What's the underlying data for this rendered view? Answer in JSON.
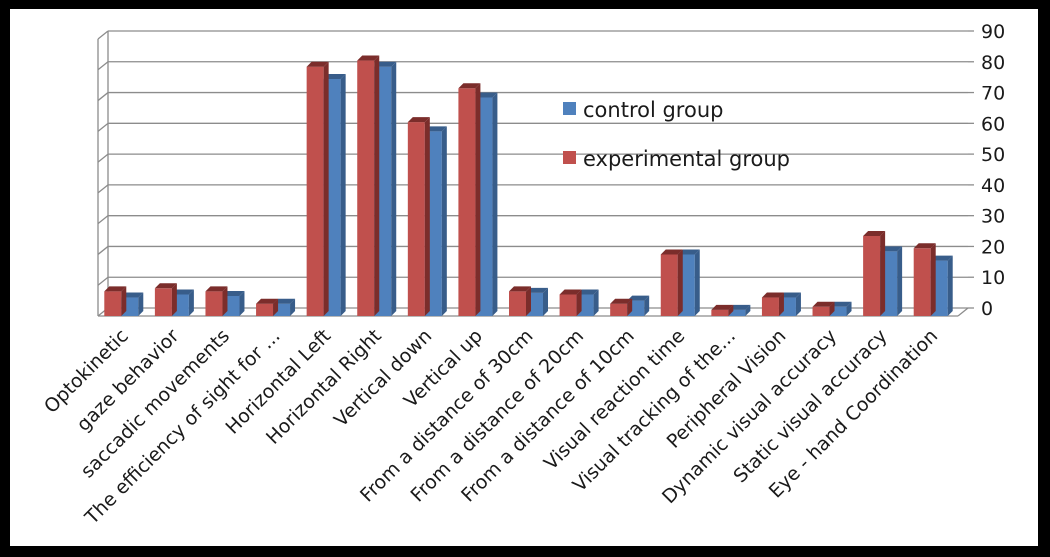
{
  "colors": {
    "background": "#ffffff",
    "border": "#000000",
    "gridline": "#8c8c8c",
    "control_front": "#4f81bd",
    "control_side": "#385d8a",
    "experimental_front": "#c0504d",
    "experimental_side": "#7b2d2b"
  },
  "chart_data": {
    "type": "bar",
    "style": "3d-clustered-column",
    "grid": true,
    "legend_position": "inside-top-right",
    "ylim": [
      0,
      90
    ],
    "yticks": [
      0,
      10,
      20,
      30,
      40,
      50,
      60,
      70,
      80,
      90
    ],
    "categories": [
      "Optokinetic",
      "gaze behavior",
      "saccadic movements",
      "The efficiency of sight for ...",
      "Horizontal Left",
      "Horizontal Right",
      "Vertical down",
      "Vertical up",
      "From a distance of 30cm",
      "From a distance of 20cm",
      "From a distance of 10cm",
      "Visual reaction time",
      "Visual tracking of the...",
      "Peripheral Vision",
      "Dynamic visual accuracy",
      "Static visual accuracy",
      "Eye - hand Coordination"
    ],
    "series": [
      {
        "name": "experimental group",
        "color": "#c0504d",
        "values": [
          8,
          9,
          8,
          4,
          81,
          83,
          63,
          74,
          8,
          7,
          4,
          20,
          2,
          6,
          3,
          26,
          22
        ]
      },
      {
        "name": "control group",
        "color": "#4f81bd",
        "values": [
          6,
          7,
          6.5,
          4,
          77,
          81,
          60,
          71,
          7.5,
          7,
          5,
          20,
          2,
          6,
          3,
          21,
          18
        ]
      }
    ],
    "legend": [
      {
        "name": "control group",
        "color": "#4f81bd"
      },
      {
        "name": "experimental group",
        "color": "#c0504d"
      }
    ]
  }
}
